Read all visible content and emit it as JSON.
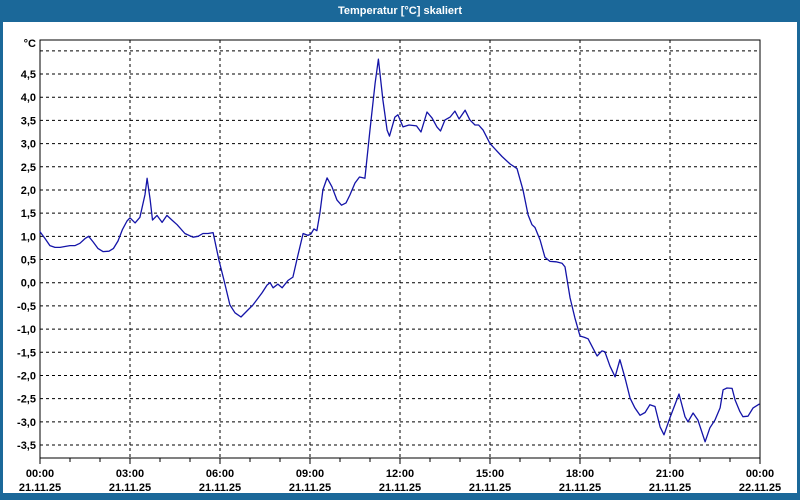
{
  "window": {
    "title": "Temperatur [°C] skaliert",
    "titlebar_color": "#1b6899",
    "border_color": "#1b6899",
    "background": "#ffffff"
  },
  "chart_data": {
    "type": "line",
    "title": "Temperatur [°C] skaliert",
    "unit_label": "°C",
    "grid": true,
    "line_color": "#1414a8",
    "grid_color": "#000000",
    "text_color": "#000000",
    "x_axis": {
      "range_hours": [
        0,
        24
      ],
      "major_tick_hours": 3,
      "minor_tick_hours": 1,
      "ticks": [
        {
          "hour": 0,
          "time": "00:00",
          "date": "21.11.25"
        },
        {
          "hour": 3,
          "time": "03:00",
          "date": "21.11.25"
        },
        {
          "hour": 6,
          "time": "06:00",
          "date": "21.11.25"
        },
        {
          "hour": 9,
          "time": "09:00",
          "date": "21.11.25"
        },
        {
          "hour": 12,
          "time": "12:00",
          "date": "21.11.25"
        },
        {
          "hour": 15,
          "time": "15:00",
          "date": "21.11.25"
        },
        {
          "hour": 18,
          "time": "18:00",
          "date": "21.11.25"
        },
        {
          "hour": 21,
          "time": "21:00",
          "date": "21.11.25"
        },
        {
          "hour": 24,
          "time": "00:00",
          "date": "22.11.25"
        }
      ]
    },
    "y_axis": {
      "min": -3.78,
      "max": 5.23,
      "grid_step": 0.5,
      "top_gridline": 5.0,
      "ticks": [
        {
          "value": 4.5,
          "label": "4,5"
        },
        {
          "value": 4.0,
          "label": "4,0"
        },
        {
          "value": 3.5,
          "label": "3,5"
        },
        {
          "value": 3.0,
          "label": "3,0"
        },
        {
          "value": 2.5,
          "label": "2,5"
        },
        {
          "value": 2.0,
          "label": "2,0"
        },
        {
          "value": 1.5,
          "label": "1,5"
        },
        {
          "value": 1.0,
          "label": "1,0"
        },
        {
          "value": 0.5,
          "label": "0,5"
        },
        {
          "value": 0.0,
          "label": "0,0"
        },
        {
          "value": -0.5,
          "label": "-0,5"
        },
        {
          "value": -1.0,
          "label": "-1,0"
        },
        {
          "value": -1.5,
          "label": "-1,5"
        },
        {
          "value": -2.0,
          "label": "-2,0"
        },
        {
          "value": -2.5,
          "label": "-2,5"
        },
        {
          "value": -3.0,
          "label": "-3,0"
        },
        {
          "value": -3.5,
          "label": "-3,5"
        }
      ]
    },
    "series": [
      {
        "name": "Temperatur",
        "color": "#1414a8",
        "points": [
          [
            0.0,
            1.1
          ],
          [
            0.17,
            0.95
          ],
          [
            0.33,
            0.8
          ],
          [
            0.5,
            0.76
          ],
          [
            0.67,
            0.76
          ],
          [
            0.83,
            0.78
          ],
          [
            1.0,
            0.8
          ],
          [
            1.17,
            0.8
          ],
          [
            1.33,
            0.85
          ],
          [
            1.5,
            0.95
          ],
          [
            1.62,
            1.0
          ],
          [
            1.77,
            0.88
          ],
          [
            1.93,
            0.74
          ],
          [
            2.1,
            0.67
          ],
          [
            2.3,
            0.68
          ],
          [
            2.45,
            0.74
          ],
          [
            2.6,
            0.9
          ],
          [
            2.75,
            1.15
          ],
          [
            2.9,
            1.33
          ],
          [
            3.0,
            1.4
          ],
          [
            3.17,
            1.29
          ],
          [
            3.33,
            1.41
          ],
          [
            3.5,
            1.9
          ],
          [
            3.57,
            2.25
          ],
          [
            3.67,
            1.8
          ],
          [
            3.75,
            1.35
          ],
          [
            3.9,
            1.45
          ],
          [
            4.07,
            1.3
          ],
          [
            4.23,
            1.45
          ],
          [
            4.4,
            1.35
          ],
          [
            4.57,
            1.25
          ],
          [
            4.83,
            1.06
          ],
          [
            5.1,
            0.98
          ],
          [
            5.27,
            1.0
          ],
          [
            5.43,
            1.06
          ],
          [
            5.6,
            1.06
          ],
          [
            5.77,
            1.08
          ],
          [
            5.97,
            0.47
          ],
          [
            6.13,
            0.06
          ],
          [
            6.33,
            -0.48
          ],
          [
            6.5,
            -0.65
          ],
          [
            6.7,
            -0.74
          ],
          [
            6.93,
            -0.59
          ],
          [
            7.1,
            -0.48
          ],
          [
            7.4,
            -0.22
          ],
          [
            7.57,
            -0.05
          ],
          [
            7.67,
            0.0
          ],
          [
            7.77,
            -0.11
          ],
          [
            7.93,
            -0.03
          ],
          [
            8.07,
            -0.11
          ],
          [
            8.27,
            0.05
          ],
          [
            8.43,
            0.12
          ],
          [
            8.6,
            0.6
          ],
          [
            8.77,
            1.06
          ],
          [
            8.93,
            1.02
          ],
          [
            9.03,
            1.05
          ],
          [
            9.13,
            1.16
          ],
          [
            9.23,
            1.12
          ],
          [
            9.33,
            1.5
          ],
          [
            9.43,
            2.0
          ],
          [
            9.57,
            2.26
          ],
          [
            9.73,
            2.07
          ],
          [
            9.9,
            1.78
          ],
          [
            10.05,
            1.67
          ],
          [
            10.2,
            1.72
          ],
          [
            10.33,
            1.89
          ],
          [
            10.5,
            2.15
          ],
          [
            10.65,
            2.28
          ],
          [
            10.83,
            2.25
          ],
          [
            11.0,
            3.3
          ],
          [
            11.17,
            4.3
          ],
          [
            11.28,
            4.82
          ],
          [
            11.43,
            3.94
          ],
          [
            11.57,
            3.29
          ],
          [
            11.65,
            3.16
          ],
          [
            11.83,
            3.57
          ],
          [
            11.93,
            3.62
          ],
          [
            12.1,
            3.36
          ],
          [
            12.3,
            3.4
          ],
          [
            12.55,
            3.38
          ],
          [
            12.7,
            3.25
          ],
          [
            12.9,
            3.68
          ],
          [
            13.07,
            3.55
          ],
          [
            13.23,
            3.36
          ],
          [
            13.35,
            3.27
          ],
          [
            13.5,
            3.51
          ],
          [
            13.67,
            3.57
          ],
          [
            13.83,
            3.7
          ],
          [
            13.97,
            3.53
          ],
          [
            14.17,
            3.72
          ],
          [
            14.33,
            3.51
          ],
          [
            14.5,
            3.4
          ],
          [
            14.62,
            3.4
          ],
          [
            14.77,
            3.29
          ],
          [
            15.0,
            3.0
          ],
          [
            15.2,
            2.86
          ],
          [
            15.4,
            2.72
          ],
          [
            15.67,
            2.56
          ],
          [
            15.9,
            2.46
          ],
          [
            16.1,
            2.0
          ],
          [
            16.27,
            1.46
          ],
          [
            16.4,
            1.25
          ],
          [
            16.5,
            1.19
          ],
          [
            16.67,
            0.92
          ],
          [
            16.83,
            0.55
          ],
          [
            17.0,
            0.46
          ],
          [
            17.2,
            0.45
          ],
          [
            17.4,
            0.42
          ],
          [
            17.5,
            0.34
          ],
          [
            17.67,
            -0.33
          ],
          [
            17.83,
            -0.76
          ],
          [
            18.0,
            -1.15
          ],
          [
            18.15,
            -1.18
          ],
          [
            18.27,
            -1.21
          ],
          [
            18.43,
            -1.41
          ],
          [
            18.57,
            -1.58
          ],
          [
            18.73,
            -1.47
          ],
          [
            18.83,
            -1.49
          ],
          [
            19.0,
            -1.8
          ],
          [
            19.17,
            -2.03
          ],
          [
            19.33,
            -1.66
          ],
          [
            19.5,
            -2.05
          ],
          [
            19.67,
            -2.49
          ],
          [
            19.83,
            -2.7
          ],
          [
            20.0,
            -2.86
          ],
          [
            20.17,
            -2.8
          ],
          [
            20.33,
            -2.63
          ],
          [
            20.5,
            -2.67
          ],
          [
            20.67,
            -3.11
          ],
          [
            20.8,
            -3.28
          ],
          [
            21.0,
            -2.91
          ],
          [
            21.3,
            -2.4
          ],
          [
            21.5,
            -2.89
          ],
          [
            21.6,
            -3.0
          ],
          [
            21.77,
            -2.81
          ],
          [
            21.93,
            -2.96
          ],
          [
            22.17,
            -3.43
          ],
          [
            22.33,
            -3.13
          ],
          [
            22.5,
            -2.96
          ],
          [
            22.67,
            -2.7
          ],
          [
            22.77,
            -2.31
          ],
          [
            22.9,
            -2.27
          ],
          [
            23.07,
            -2.28
          ],
          [
            23.17,
            -2.53
          ],
          [
            23.33,
            -2.78
          ],
          [
            23.43,
            -2.89
          ],
          [
            23.6,
            -2.88
          ],
          [
            23.77,
            -2.7
          ],
          [
            23.97,
            -2.62
          ]
        ]
      }
    ]
  }
}
